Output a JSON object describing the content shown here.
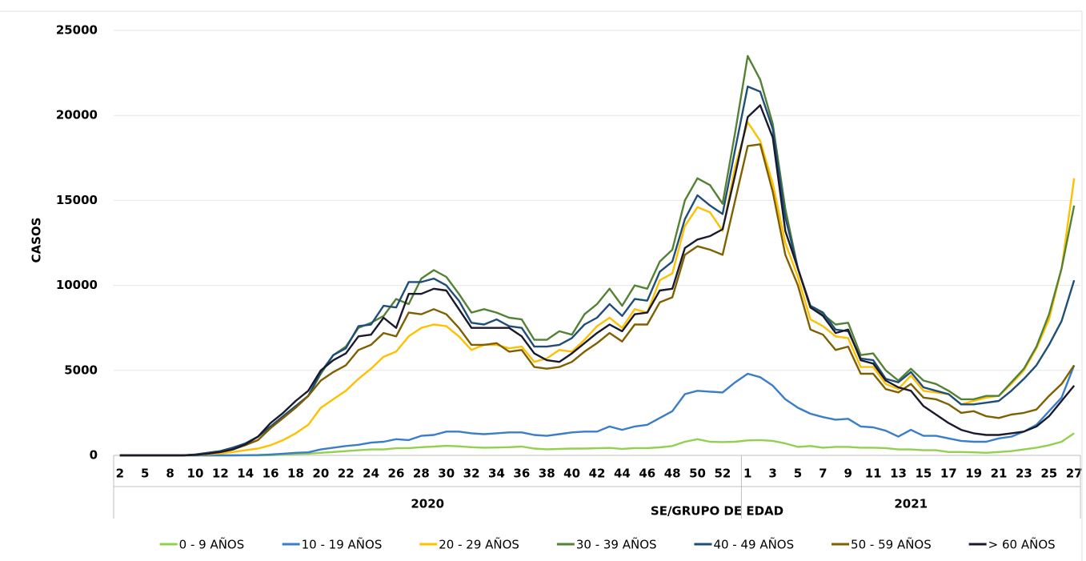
{
  "chart_data": {
    "type": "line",
    "y_label": "CASOS",
    "x_label": "SE/GRUPO DE EDAD",
    "year_labels": [
      "2020",
      "2021"
    ],
    "categories": [
      "2",
      null,
      "5",
      null,
      "8",
      null,
      "10",
      null,
      "12",
      null,
      "14",
      null,
      "16",
      null,
      "18",
      null,
      "20",
      null,
      "22",
      null,
      "24",
      null,
      "26",
      null,
      "28",
      null,
      "30",
      null,
      "32",
      null,
      "34",
      null,
      "36",
      null,
      "38",
      null,
      "40",
      null,
      "42",
      null,
      "44",
      null,
      "46",
      null,
      "48",
      null,
      "50",
      null,
      "52",
      null,
      "1",
      null,
      "3",
      null,
      "5",
      null,
      "7",
      null,
      "9",
      null,
      "11",
      null,
      "13",
      null,
      "15",
      null,
      "17",
      null,
      "19",
      null,
      "21",
      null,
      "23",
      null,
      "25",
      null,
      "27"
    ],
    "ylim": [
      0,
      25000
    ],
    "yticks": [
      0,
      5000,
      10000,
      15000,
      20000,
      25000
    ],
    "grid": true,
    "series": [
      {
        "name": "0 - 9 AÑOS",
        "color": "#92d050",
        "values": [
          0,
          0,
          0,
          0,
          0,
          0,
          0,
          0,
          0,
          0,
          0,
          0,
          10,
          40,
          80,
          100,
          150,
          200,
          250,
          300,
          350,
          350,
          420,
          430,
          480,
          520,
          560,
          530,
          480,
          450,
          460,
          480,
          520,
          400,
          360,
          380,
          400,
          400,
          420,
          440,
          380,
          430,
          430,
          470,
          550,
          800,
          950,
          800,
          780,
          800,
          880,
          900,
          850,
          700,
          500,
          550,
          450,
          500,
          500,
          450,
          450,
          430,
          350,
          350,
          300,
          300,
          200,
          200,
          180,
          150,
          200,
          250,
          350,
          450,
          600,
          800,
          1300
        ]
      },
      {
        "name": "10 - 19 AÑOS",
        "color": "#3a7dc9",
        "values": [
          0,
          0,
          0,
          0,
          0,
          0,
          0,
          0,
          0,
          0,
          10,
          20,
          50,
          100,
          150,
          180,
          350,
          450,
          550,
          620,
          750,
          800,
          950,
          900,
          1150,
          1200,
          1400,
          1400,
          1300,
          1250,
          1300,
          1350,
          1350,
          1200,
          1150,
          1250,
          1350,
          1400,
          1400,
          1700,
          1500,
          1700,
          1800,
          2200,
          2600,
          3600,
          3800,
          3750,
          3700,
          4300,
          4800,
          4600,
          4100,
          3300,
          2800,
          2450,
          2250,
          2100,
          2150,
          1700,
          1650,
          1450,
          1100,
          1500,
          1150,
          1150,
          1000,
          850,
          800,
          800,
          1000,
          1100,
          1400,
          1800,
          2600,
          3400,
          5300
        ]
      },
      {
        "name": "20 - 29 AÑOS",
        "color": "#ffc000",
        "values": [
          0,
          0,
          0,
          0,
          0,
          0,
          30,
          60,
          120,
          200,
          300,
          400,
          600,
          900,
          1300,
          1800,
          2800,
          3300,
          3800,
          4500,
          5100,
          5800,
          6100,
          7000,
          7500,
          7700,
          7600,
          7000,
          6200,
          6500,
          6500,
          6300,
          6400,
          5500,
          5700,
          6200,
          6100,
          6800,
          7600,
          8100,
          7500,
          8600,
          8400,
          10300,
          10700,
          13500,
          14600,
          14300,
          13200,
          17000,
          19600,
          18500,
          16000,
          12500,
          10500,
          8000,
          7600,
          7000,
          6900,
          5200,
          5200,
          4200,
          3900,
          4700,
          3800,
          3700,
          3600,
          3000,
          3200,
          3400,
          3500,
          4200,
          5000,
          6300,
          8000,
          11000,
          16300
        ]
      },
      {
        "name": "30 - 39 AÑOS",
        "color": "#548235",
        "values": [
          0,
          0,
          0,
          0,
          0,
          0,
          50,
          150,
          250,
          450,
          700,
          1100,
          1700,
          2300,
          2900,
          3500,
          4800,
          5900,
          6400,
          7500,
          7800,
          8200,
          9200,
          8900,
          10400,
          10900,
          10500,
          9500,
          8400,
          8600,
          8400,
          8100,
          8000,
          6800,
          6800,
          7300,
          7100,
          8300,
          8900,
          9800,
          8800,
          10000,
          9800,
          11400,
          12100,
          15000,
          16300,
          15900,
          14800,
          19000,
          23500,
          22100,
          19500,
          14500,
          11000,
          8700,
          8300,
          7700,
          7800,
          5900,
          6000,
          5000,
          4400,
          5100,
          4400,
          4200,
          3800,
          3300,
          3300,
          3500,
          3500,
          4300,
          5100,
          6400,
          8300,
          11000,
          14700
        ]
      },
      {
        "name": "40 - 49 AÑOS",
        "color": "#1f4e79",
        "values": [
          0,
          0,
          0,
          0,
          0,
          0,
          50,
          150,
          250,
          450,
          700,
          1100,
          1700,
          2300,
          2900,
          3500,
          4900,
          5900,
          6300,
          7600,
          7700,
          8800,
          8700,
          10200,
          10200,
          10400,
          10000,
          9100,
          7800,
          7700,
          8000,
          7600,
          7500,
          6400,
          6400,
          6500,
          6900,
          7700,
          8100,
          8900,
          8200,
          9200,
          9100,
          10800,
          11400,
          13900,
          15300,
          14700,
          14200,
          18000,
          21700,
          21400,
          19200,
          14000,
          11000,
          8800,
          8400,
          7400,
          7300,
          5700,
          5600,
          4500,
          4300,
          4900,
          4000,
          3800,
          3600,
          3000,
          3000,
          3100,
          3200,
          3800,
          4500,
          5300,
          6500,
          7900,
          10300
        ]
      },
      {
        "name": "50 - 59 AÑOS",
        "color": "#7f6000",
        "values": [
          0,
          0,
          0,
          0,
          0,
          0,
          30,
          100,
          200,
          350,
          600,
          900,
          1600,
          2200,
          2800,
          3500,
          4400,
          4900,
          5300,
          6200,
          6500,
          7200,
          7000,
          8400,
          8300,
          8600,
          8300,
          7500,
          6500,
          6500,
          6600,
          6100,
          6200,
          5200,
          5100,
          5200,
          5500,
          6100,
          6600,
          7200,
          6700,
          7700,
          7700,
          9000,
          9300,
          11800,
          12300,
          12100,
          11800,
          15000,
          18200,
          18300,
          15500,
          11800,
          10000,
          7400,
          7100,
          6200,
          6400,
          4800,
          4800,
          3900,
          3700,
          4200,
          3400,
          3300,
          3000,
          2500,
          2600,
          2300,
          2200,
          2400,
          2500,
          2700,
          3500,
          4200,
          5300
        ]
      },
      {
        "name": "> 60 AÑOS",
        "color": "#1a1a2e",
        "values": [
          0,
          0,
          0,
          0,
          0,
          0,
          30,
          100,
          200,
          350,
          650,
          1100,
          1900,
          2500,
          3200,
          3800,
          5000,
          5600,
          6000,
          7000,
          7100,
          8100,
          7500,
          9500,
          9500,
          9800,
          9700,
          8600,
          7500,
          7500,
          7500,
          7500,
          7000,
          6000,
          5600,
          5500,
          6000,
          6600,
          7200,
          7700,
          7300,
          8300,
          8400,
          9700,
          9800,
          12200,
          12700,
          12900,
          13300,
          16500,
          19900,
          20600,
          18700,
          13200,
          11000,
          8700,
          8200,
          7200,
          7400,
          5600,
          5400,
          4400,
          4000,
          3800,
          2900,
          2400,
          1900,
          1500,
          1300,
          1200,
          1200,
          1300,
          1400,
          1700,
          2300,
          3200,
          4100
        ]
      }
    ]
  }
}
